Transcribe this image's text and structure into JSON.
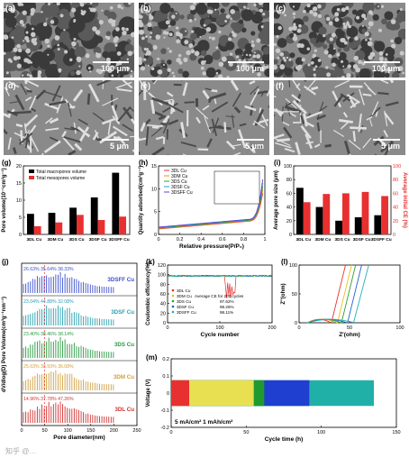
{
  "sem_panels": [
    {
      "label": "(a)",
      "scale": "100 μm",
      "style": "porous"
    },
    {
      "label": "(b)",
      "scale": "100 μm",
      "style": "porous"
    },
    {
      "label": "(c)",
      "scale": "100 μm",
      "style": "porous"
    },
    {
      "label": "(d)",
      "scale": "5 μm",
      "style": "dendrite"
    },
    {
      "label": "(e)",
      "scale": "5 μm",
      "style": "dendrite"
    },
    {
      "label": "(f)",
      "scale": "5 μm",
      "style": "dendrite"
    }
  ],
  "watermark": "知乎 @…",
  "chart_data": [
    {
      "id": "g",
      "label": "(g)",
      "type": "bar",
      "categories": [
        "3DL Cu",
        "3DM Cu",
        "3DS Cu",
        "3DSF Cu",
        "3DSFF Cu"
      ],
      "series": [
        {
          "name": "Total macropores volume",
          "values": [
            6.0,
            6.3,
            7.8,
            10.8,
            18.0
          ],
          "color": "#000000"
        },
        {
          "name": "Total mesopores volume",
          "values": [
            2.4,
            3.5,
            5.7,
            4.2,
            5.2
          ],
          "color": "#e83030"
        }
      ],
      "ylabel": "Pore volume(10⁻¹cm³g⁻¹)",
      "ylim": [
        0,
        20
      ],
      "yticks": [
        0,
        5,
        10,
        15,
        20
      ]
    },
    {
      "id": "h",
      "label": "(h)",
      "type": "line",
      "xlabel": "Relative pressure(P/P₀)",
      "ylabel": "Quantity adsorbed(cm³g⁻¹)",
      "xlim": [
        0,
        1.0
      ],
      "ylim": [
        0,
        15
      ],
      "xticks": [
        0.0,
        0.2,
        0.4,
        0.6,
        0.8,
        1.0
      ],
      "yticks": [
        0,
        5,
        10,
        15
      ],
      "legend": [
        "3DL Cu",
        "3DM Cu",
        "3DS Cu",
        "3DSF Cu",
        "3DSFF Cu"
      ],
      "colors": [
        "#e83030",
        "#e89020",
        "#2ca02c",
        "#20a0d0",
        "#6a3fd0"
      ]
    },
    {
      "id": "i",
      "label": "(i)",
      "type": "bar",
      "categories": [
        "3DL Cu",
        "3DM Cu",
        "3DS Cu",
        "3DSF Cu",
        "3DSFF Cu"
      ],
      "series": [
        {
          "name": "Average pore size",
          "values": [
            68,
            40,
            20,
            25,
            28
          ],
          "color": "#000000"
        },
        {
          "name": "Average initial CE",
          "values": [
            47,
            59,
            60,
            62,
            56
          ],
          "color": "#e83030"
        }
      ],
      "ylabel": "Average pore size (μm)",
      "ylabel2": "Average initial CE (%)",
      "ylim": [
        0,
        100
      ],
      "yticks": [
        0,
        20,
        40,
        60,
        80,
        100
      ]
    },
    {
      "id": "j",
      "label": "(j)",
      "type": "bar",
      "xlabel": "Pore diameter(nm)",
      "ylabel": "dV/dlog(D) Pore Volume(cm³g⁻¹nm⁻¹)",
      "xlim": [
        0,
        250
      ],
      "xticks": [
        0,
        50,
        100,
        150,
        200,
        250
      ],
      "series": [
        {
          "name": "3DSFF Cu",
          "pct": "26.63%|35.64%|38.33%",
          "color": "#3b4fd0"
        },
        {
          "name": "3DSF Cu",
          "pct": "23.04%|44.88%|32.08%",
          "color": "#2aa0b0"
        },
        {
          "name": "3DS Cu",
          "pct": "23.40%|38.46%|38.14%",
          "color": "#2a9a40"
        },
        {
          "name": "3DM Cu",
          "pct": "25.63%|38.93%|36.08%",
          "color": "#d0a040"
        },
        {
          "name": "3DL Cu",
          "pct": "14.96%|37.78%|47.26%",
          "color": "#d03030"
        }
      ]
    },
    {
      "id": "k",
      "label": "(k)",
      "type": "line",
      "xlabel": "Cycle number",
      "ylabel": "Coulombic efficiency(%)",
      "xlim": [
        0,
        200
      ],
      "ylim": [
        0,
        120
      ],
      "xticks": [
        0,
        100,
        200
      ],
      "yticks": [
        0,
        20,
        40,
        60,
        80,
        100,
        120
      ],
      "legend_title": "Average CE for 200 cycles",
      "legend": [
        {
          "name": "3DL Cu",
          "ce": ""
        },
        {
          "name": "3DM Cu",
          "ce": ""
        },
        {
          "name": "3DS Cu",
          "ce": "97.62%"
        },
        {
          "name": "3DSF Cu",
          "ce": "98.26%"
        },
        {
          "name": "3DSFF Cu",
          "ce": "98.11%"
        }
      ],
      "colors": [
        "#e83030",
        "#e8c020",
        "#2ca02c",
        "#2060d0",
        "#20b0b0"
      ]
    },
    {
      "id": "l",
      "label": "(l)",
      "type": "line",
      "xlabel": "Z'(ohm)",
      "ylabel": "Z''(ohm)",
      "xlim": [
        0,
        100
      ],
      "ylim": [
        0,
        100
      ],
      "xticks": [
        0,
        50,
        100
      ],
      "yticks": [
        0,
        50,
        100
      ],
      "colors": [
        "#e83030",
        "#e8c020",
        "#2ca02c",
        "#2060d0",
        "#20b0b0"
      ]
    },
    {
      "id": "m",
      "label": "(m)",
      "type": "area",
      "xlabel": "Cycle time (h)",
      "ylabel": "Voltage (V)",
      "xlim": [
        0,
        150
      ],
      "ylim": [
        -0.2,
        0.2
      ],
      "xticks": [
        0,
        50,
        100,
        150
      ],
      "yticks": [
        -0.2,
        -0.1,
        0.0,
        0.1,
        0.2
      ],
      "annotation": "5 mA/cm² 1 mAh/cm²",
      "series": [
        {
          "name": "3DL Cu",
          "end": 12,
          "color": "#e83030"
        },
        {
          "name": "3DM Cu",
          "end": 55,
          "color": "#e8e050"
        },
        {
          "name": "3DS Cu",
          "end": 62,
          "color": "#1f9a2f"
        },
        {
          "name": "3DSF Cu",
          "end": 92,
          "color": "#1f3fd0"
        },
        {
          "name": "3DSFF Cu",
          "end": 135,
          "color": "#20b0a8"
        }
      ]
    }
  ]
}
